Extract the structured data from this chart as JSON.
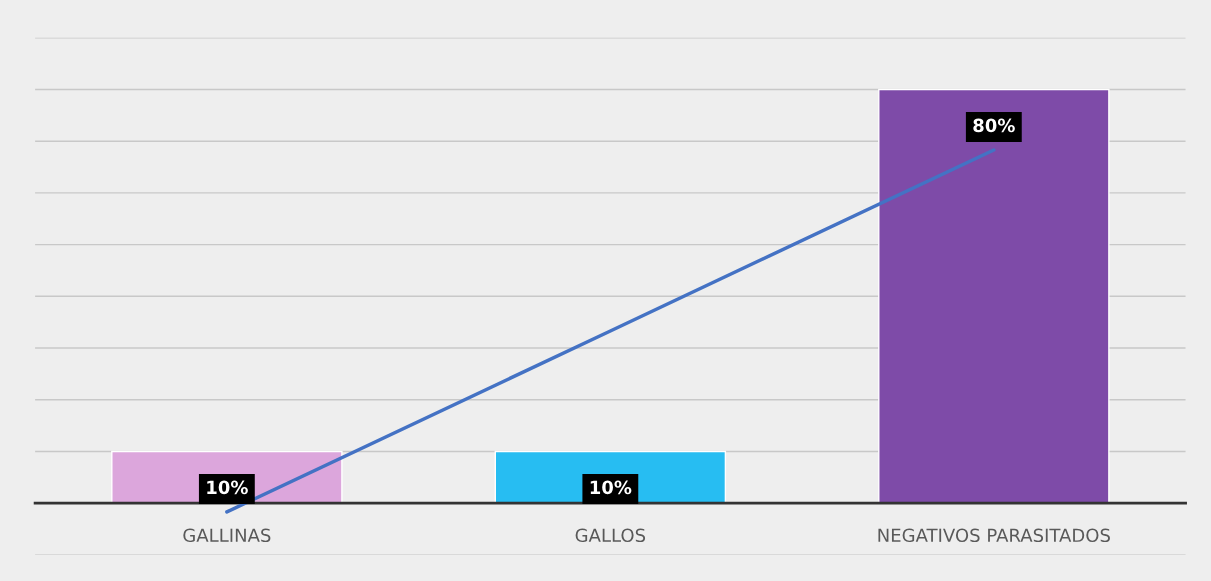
{
  "chart_data": {
    "type": "bar",
    "categories": [
      "GALLINAS",
      "GALLOS",
      "NEGATIVOS PARASITADOS"
    ],
    "series": [
      {
        "colors": [
          "#dca6dc",
          "#27bdf2",
          "#7e4ba8"
        ],
        "values": [
          10,
          10,
          80
        ],
        "value_labels": [
          "10%",
          "10%",
          "80%"
        ]
      },
      {
        "type": "line",
        "color": "#4472c4",
        "values": [
          -1.7,
          33.3,
          68.3
        ]
      }
    ],
    "ylim": [
      -10,
      90
    ],
    "yticks": [
      {
        "value": -10,
        "label": null
      },
      {
        "value": 0,
        "label": null
      },
      {
        "value": 10,
        "label": null
      },
      {
        "value": 20,
        "label": null
      },
      {
        "value": 30,
        "label": null
      },
      {
        "value": 40,
        "label": null
      },
      {
        "value": 50,
        "label": null
      },
      {
        "value": 60,
        "label": null
      },
      {
        "value": 70,
        "label": null
      },
      {
        "value": 80,
        "label": null
      },
      {
        "value": 90,
        "label": null
      }
    ],
    "grid": "y",
    "tick_labels": "x"
  }
}
